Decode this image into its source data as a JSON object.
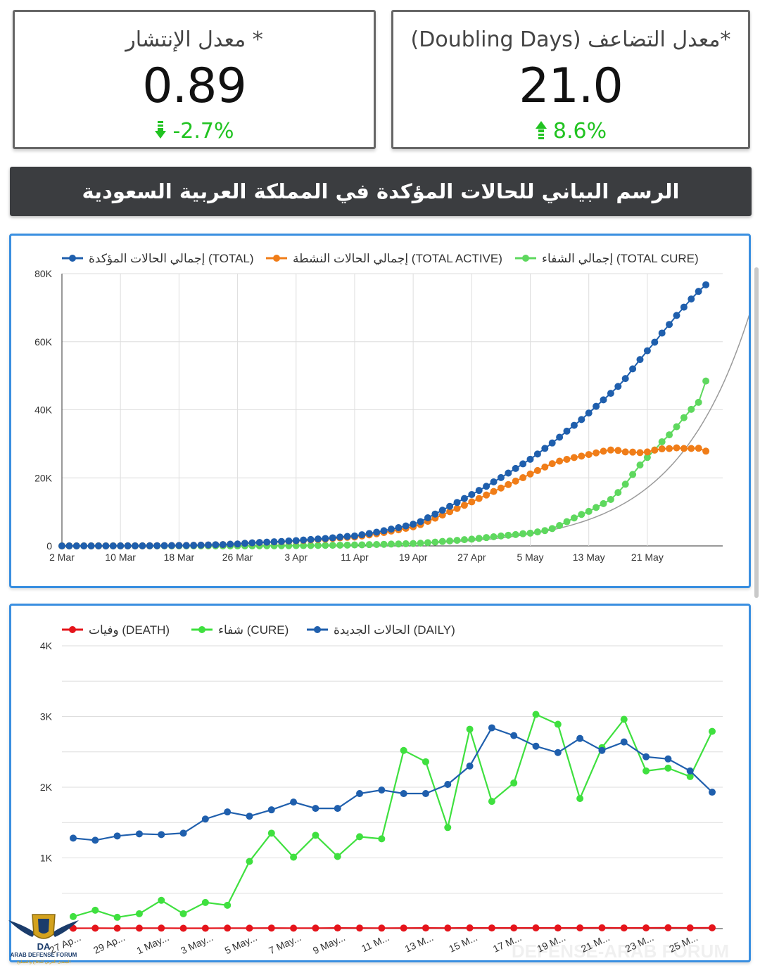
{
  "kpis": {
    "spread": {
      "title": "* معدل الإنتشار",
      "value": "0.89",
      "delta": "-2.7%",
      "direction": "down",
      "delta_color": "#21c321"
    },
    "doubling": {
      "title": "*معدل التضاعف (Doubling Days)",
      "value": "21.0",
      "delta": "8.6%",
      "direction": "up",
      "delta_color": "#21c321"
    }
  },
  "banner": {
    "title": "الرسم البياني للحالات المؤكدة في المملكة العربية السعودية"
  },
  "watermark": {
    "logo_text": "ARAB DEFENSE FORUM",
    "logo_subtext": "المنتدى العربي للدفاع والتسليح",
    "bg_text": "DEFENSE-ARAB FORUM"
  },
  "colors": {
    "blue": "#1f5fad",
    "orange": "#f07d18",
    "green": "#5ed85e",
    "bright_green": "#3fe03f",
    "red": "#e5141b",
    "border": "#3a8fe0"
  },
  "chart_data": [
    {
      "type": "line",
      "title": "",
      "legend_position": "top",
      "grid": true,
      "ylim": [
        0,
        80000
      ],
      "y_ticks": [
        "0",
        "20K",
        "40K",
        "60K",
        "80K"
      ],
      "x_ticks": [
        "2 Mar",
        "10 Mar",
        "18 Mar",
        "26 Mar",
        "3 Apr",
        "11 Apr",
        "19 Apr",
        "27 Apr",
        "5 May",
        "13 May",
        "21 May"
      ],
      "x_start": "2 Mar",
      "x_end": "24 May",
      "series": [
        {
          "name": "إجمالي الحالات المؤكدة (TOTAL)",
          "color": "#1f5fad",
          "values": [
            1,
            1,
            5,
            5,
            7,
            7,
            11,
            11,
            15,
            15,
            20,
            21,
            45,
            62,
            86,
            103,
            118,
            133,
            171,
            238,
            274,
            344,
            392,
            511,
            562,
            767,
            900,
            1012,
            1104,
            1203,
            1299,
            1453,
            1563,
            1720,
            1885,
            2039,
            2179,
            2385,
            2605,
            2795,
            2932,
            3287,
            3651,
            4033,
            4462,
            4934,
            5369,
            5862,
            6380,
            7142,
            8274,
            9362,
            10484,
            11631,
            12772,
            13930,
            15102,
            16299,
            17522,
            18811,
            20077,
            21402,
            22753,
            24097,
            25459,
            27011,
            28656,
            30251,
            31938,
            33731,
            35432,
            37136,
            39048,
            41014,
            42925,
            44830,
            46869,
            49176,
            52016,
            54752,
            57345,
            59854,
            62545,
            65077,
            67719,
            70161,
            72560,
            74795,
            76726
          ]
        },
        {
          "name": "إجمالي الحالات النشطة (TOTAL ACTIVE)",
          "color": "#f07d18",
          "values": [
            1,
            1,
            5,
            5,
            7,
            7,
            11,
            11,
            15,
            15,
            20,
            21,
            45,
            62,
            86,
            103,
            118,
            133,
            168,
            232,
            266,
            333,
            379,
            495,
            543,
            745,
            874,
            975,
            1062,
            1151,
            1231,
            1374,
            1470,
            1611,
            1760,
            1887,
            2000,
            2178,
            2368,
            2526,
            2616,
            2928,
            3237,
            3567,
            3940,
            4355,
            4733,
            5160,
            5616,
            6268,
            7221,
            8152,
            9078,
            10053,
            11008,
            11949,
            12933,
            13932,
            14953,
            15994,
            16999,
            18024,
            19040,
            20045,
            21133,
            22147,
            23181,
            24160,
            24912,
            25436,
            25967,
            26394,
            26860,
            27340,
            27829,
            28184,
            28050,
            27613,
            27563,
            27412,
            27617,
            28141,
            28520,
            28606,
            28814,
            28628,
            28634,
            28700,
            27846
          ]
        },
        {
          "name": "إجمالي الشفاء (TOTAL CURE)",
          "color": "#5ed85e",
          "values": [
            0,
            0,
            0,
            0,
            0,
            0,
            0,
            0,
            0,
            0,
            0,
            0,
            0,
            0,
            0,
            0,
            0,
            0,
            2,
            5,
            6,
            8,
            10,
            12,
            13,
            16,
            18,
            29,
            33,
            35,
            57,
            66,
            78,
            93,
            107,
            131,
            157,
            183,
            213,
            239,
            282,
            317,
            376,
            426,
            474,
            530,
            580,
            636,
            699,
            803,
            952,
            1115,
            1305,
            1459,
            1635,
            1833,
            1984,
            2215,
            2444,
            2685,
            2923,
            3137,
            3333,
            3585,
            3758,
            4109,
            4507,
            5097,
            5994,
            7122,
            8213,
            9249,
            10144,
            11288,
            12429,
            13653,
            15685,
            18129,
            20997,
            23776,
            26011,
            28194,
            30596,
            32640,
            35012,
            37686,
            40136,
            42186,
            48450
          ]
        }
      ],
      "reference_curve": "gray exponential doubling line"
    },
    {
      "type": "line",
      "title": "",
      "legend_position": "top",
      "grid": true,
      "ylim": [
        0,
        4000
      ],
      "y_ticks": [
        "0",
        "1K",
        "2K",
        "3K",
        "4K"
      ],
      "x_ticks": [
        "27 Ap...",
        "29 Ap...",
        "1 May...",
        "3 May...",
        "5 May...",
        "7 May...",
        "9 May...",
        "11 M...",
        "13 M...",
        "15 M...",
        "17 M...",
        "19 M...",
        "21 M...",
        "23 M...",
        "25 M..."
      ],
      "series": [
        {
          "name": "وفيات (DEATH)",
          "color": "#e5141b",
          "values": [
            5,
            6,
            5,
            6,
            7,
            5,
            5,
            7,
            6,
            8,
            6,
            7,
            9,
            8,
            7,
            8,
            9,
            8,
            10,
            9,
            9,
            10,
            9,
            10,
            11,
            9,
            10,
            12,
            10,
            11
          ]
        },
        {
          "name": "شفاء (CURE)",
          "color": "#3fe03f",
          "values": [
            170,
            260,
            160,
            210,
            400,
            210,
            370,
            330,
            950,
            1350,
            1010,
            1320,
            1020,
            1300,
            1270,
            2520,
            2360,
            1430,
            2820,
            1800,
            2060,
            3030,
            2890,
            1840,
            2560,
            2960,
            2230,
            2270,
            2150,
            2790
          ]
        },
        {
          "name": "الحالات الجديدة (DAILY)",
          "color": "#1f5fad",
          "values": [
            1280,
            1250,
            1310,
            1340,
            1330,
            1350,
            1550,
            1650,
            1590,
            1680,
            1790,
            1700,
            1700,
            1910,
            1960,
            1910,
            1910,
            2040,
            2300,
            2840,
            2730,
            2580,
            2490,
            2690,
            2520,
            2640,
            2430,
            2400,
            2230,
            1930
          ]
        }
      ]
    }
  ]
}
